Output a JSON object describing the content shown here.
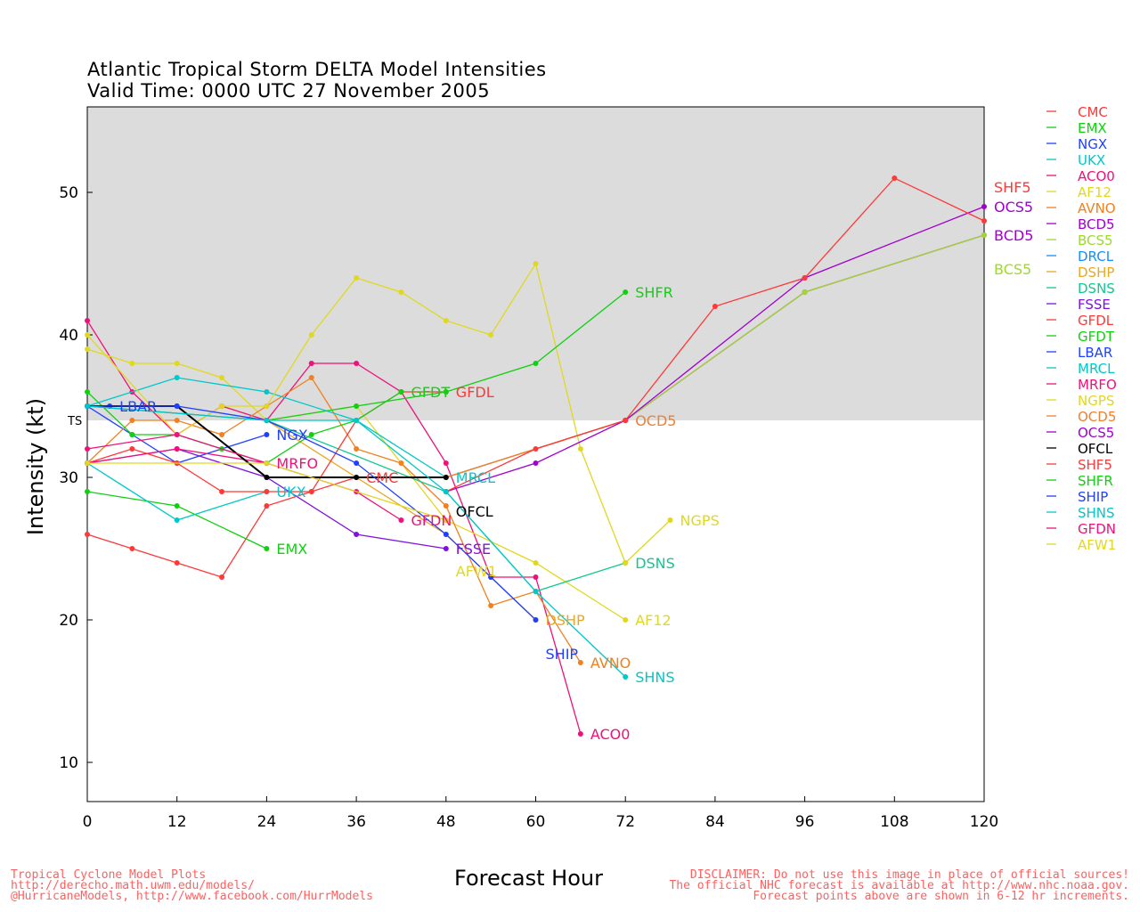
{
  "chart_data": {
    "type": "line",
    "title": "Atlantic Tropical Storm DELTA Model Intensities",
    "subtitle": "Valid Time: 0000 UTC 27 November 2005",
    "xlabel": "Forecast Hour",
    "ylabel": "Intensity (kt)",
    "xlim": [
      0,
      120
    ],
    "ylim": [
      7.25,
      56
    ],
    "xticks": [
      0,
      12,
      24,
      36,
      48,
      60,
      72,
      84,
      96,
      108,
      120
    ],
    "yticks": [
      10,
      20,
      30,
      40,
      50
    ],
    "threshold": {
      "label": "TS",
      "value": 34
    },
    "legend_position": "right",
    "series": [
      {
        "name": "CMC",
        "color": "#ff3838",
        "x": [
          0,
          6,
          12,
          18,
          24,
          30,
          36
        ],
        "y": [
          26,
          25,
          24,
          23,
          28,
          29,
          30
        ]
      },
      {
        "name": "EMX",
        "color": "#10d010",
        "x": [
          0,
          12,
          24
        ],
        "y": [
          29,
          28,
          25
        ]
      },
      {
        "name": "NGX",
        "color": "#2040ff",
        "x": [
          0,
          6,
          12,
          24
        ],
        "y": [
          35,
          33,
          31,
          33
        ]
      },
      {
        "name": "UKX",
        "color": "#00c8c8",
        "x": [
          0,
          12,
          24
        ],
        "y": [
          31,
          27,
          29
        ]
      },
      {
        "name": "ACO0",
        "color": "#f0107a",
        "x": [
          0,
          6,
          12,
          18,
          24,
          30,
          36,
          42,
          48,
          54,
          60,
          66
        ],
        "y": [
          41,
          36,
          33,
          35,
          34,
          38,
          38,
          36,
          31,
          23,
          23,
          12
        ]
      },
      {
        "name": "AF12",
        "color": "#e0d820",
        "x": [
          0,
          6,
          12,
          18,
          24,
          36,
          48,
          60,
          72
        ],
        "y": [
          39,
          38,
          38,
          37,
          34,
          35,
          27,
          24,
          20
        ]
      },
      {
        "name": "AVNO",
        "color": "#f08020",
        "x": [
          0,
          6,
          12,
          18,
          24,
          30,
          36,
          42,
          48,
          54,
          60,
          66
        ],
        "y": [
          31,
          34,
          34,
          33,
          35,
          37,
          32,
          31,
          28,
          21,
          22,
          17
        ]
      },
      {
        "name": "BCD5",
        "color": "#a000d0",
        "x": [
          48,
          72,
          96,
          120
        ],
        "y": [
          30,
          34,
          43,
          47
        ]
      },
      {
        "name": "BCS5",
        "color": "#a0d830",
        "x": [
          48,
          72,
          96,
          120
        ],
        "y": [
          30,
          34,
          43,
          47
        ]
      },
      {
        "name": "DRCL",
        "color": "#1090ff",
        "x": [],
        "y": []
      },
      {
        "name": "DSHP",
        "color": "#e8a820",
        "x": [
          0,
          24,
          48,
          60
        ],
        "y": [
          35,
          34,
          26,
          20
        ]
      },
      {
        "name": "DSNS",
        "color": "#10c890",
        "x": [
          0,
          24,
          48,
          60,
          72
        ],
        "y": [
          35,
          34,
          29,
          22,
          24
        ]
      },
      {
        "name": "FSSE",
        "color": "#8010e0",
        "x": [
          0,
          12,
          24,
          36,
          48
        ],
        "y": [
          31,
          32,
          30,
          26,
          25
        ]
      },
      {
        "name": "GFDL",
        "color": "#ff3838",
        "x": [
          0,
          6,
          12,
          18,
          24,
          30,
          36,
          42,
          48
        ],
        "y": [
          31,
          32,
          31,
          29,
          29,
          29,
          34,
          36,
          36
        ]
      },
      {
        "name": "GFDT",
        "color": "#10d010",
        "x": [
          0,
          6,
          12,
          18,
          24,
          30,
          36,
          42
        ],
        "y": [
          36,
          33,
          33,
          32,
          31,
          33,
          34,
          36
        ]
      },
      {
        "name": "LBAR",
        "color": "#2040ff",
        "x": [
          0,
          3
        ],
        "y": [
          35,
          35
        ]
      },
      {
        "name": "MRCL",
        "color": "#00c8c8",
        "x": [
          0,
          12,
          24,
          36,
          48
        ],
        "y": [
          35,
          37,
          36,
          34,
          30
        ]
      },
      {
        "name": "MRFO",
        "color": "#f0107a",
        "x": [
          0,
          12,
          24
        ],
        "y": [
          31,
          32,
          31
        ]
      },
      {
        "name": "NGPS",
        "color": "#e0d820",
        "x": [
          0,
          12,
          18,
          24,
          30,
          36,
          42,
          48,
          54,
          60,
          66,
          72,
          78
        ],
        "y": [
          40,
          33,
          35,
          35,
          40,
          44,
          43,
          41,
          40,
          45,
          32,
          24,
          27
        ]
      },
      {
        "name": "OCD5",
        "color": "#f08030",
        "x": [
          48,
          72
        ],
        "y": [
          30,
          34
        ]
      },
      {
        "name": "OCS5",
        "color": "#a000d0",
        "x": [
          48,
          60,
          72,
          96,
          120
        ],
        "y": [
          29,
          31,
          34,
          44,
          49
        ]
      },
      {
        "name": "OFCL",
        "color": "#000000",
        "x": [
          0,
          12,
          24,
          36,
          48
        ],
        "y": [
          35,
          35,
          30,
          30,
          30
        ]
      },
      {
        "name": "SHF5",
        "color": "#ff3838",
        "x": [
          48,
          60,
          72,
          84,
          96,
          108,
          120
        ],
        "y": [
          29,
          32,
          34,
          42,
          44,
          51,
          48
        ]
      },
      {
        "name": "SHFR",
        "color": "#10d010",
        "x": [
          24,
          36,
          48,
          60,
          72
        ],
        "y": [
          34,
          35,
          36,
          38,
          43
        ]
      },
      {
        "name": "SHIP",
        "color": "#2040ff",
        "x": [
          0,
          12,
          24,
          36,
          48,
          54,
          60
        ],
        "y": [
          35,
          35,
          34,
          31,
          26,
          23,
          20
        ]
      },
      {
        "name": "SHNS",
        "color": "#00c8c8",
        "x": [
          0,
          24,
          36,
          48,
          60,
          72
        ],
        "y": [
          35,
          34,
          34,
          29,
          22,
          16
        ]
      },
      {
        "name": "GFDN",
        "color": "#f0107a",
        "x": [
          0,
          12,
          24,
          36,
          42
        ],
        "y": [
          32,
          33,
          31,
          29,
          27
        ]
      },
      {
        "name": "AFW1",
        "color": "#e0d820",
        "x": [
          0,
          24,
          48
        ],
        "y": [
          31,
          31,
          27
        ]
      }
    ]
  },
  "footer_left": [
    "Tropical Cyclone Model Plots",
    "http://derecho.math.uwm.edu/models/",
    "@HurricaneModels, http://www.facebook.com/HurrModels"
  ],
  "footer_right": [
    "DISCLAIMER: Do not use this image in place of official sources!",
    "The official NHC forecast is available at http://www.nhc.noaa.gov.",
    "Forecast points above are shown in 6-12 hr increments."
  ]
}
